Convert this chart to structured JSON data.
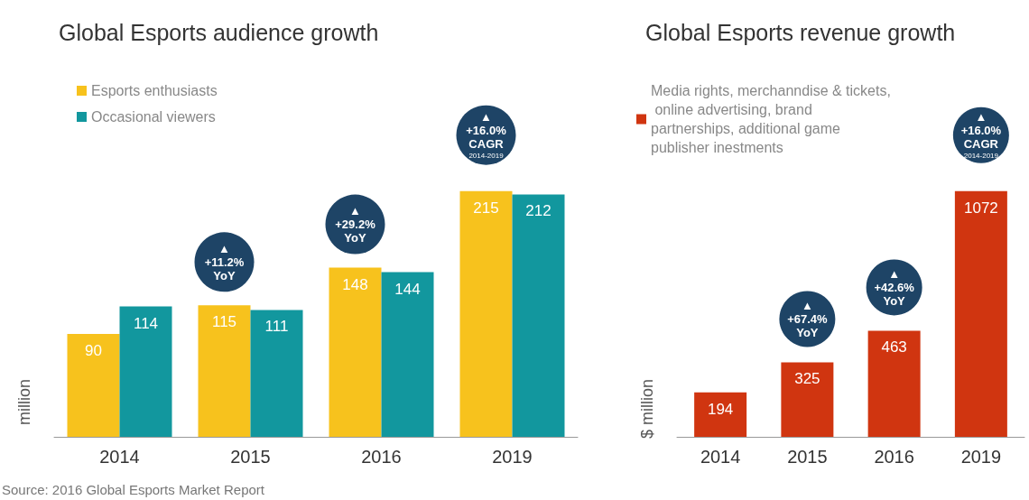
{
  "chart_data": [
    {
      "type": "bar",
      "title": "Global Esports audience growth",
      "ylabel": "million",
      "categories": [
        "2014",
        "2015",
        "2016",
        "2019"
      ],
      "series": [
        {
          "name": "Esports enthusiasts",
          "color": "#f7c21d",
          "values": [
            90,
            115,
            148,
            215
          ]
        },
        {
          "name": "Occasional viewers",
          "color": "#12979e",
          "values": [
            114,
            111,
            144,
            212
          ]
        }
      ],
      "data_labels": true,
      "legend": "top left",
      "annotations": [
        "▲ +11.2% YoY",
        "▲ +29.2% YoY",
        "▲ +16.0% CAGR 2014-2019",
        "Source: 2016 Global Esports Market Report"
      ]
    },
    {
      "type": "bar",
      "title": "Global Esports revenue growth",
      "ylabel": "$ million",
      "categories": [
        "2014",
        "2015",
        "2016",
        "2019"
      ],
      "series": [
        {
          "name": "Media rights, merchanndise & tickets, online advertising, brand partnerships, additional game publisher inestments",
          "color": "#d03510",
          "values": [
            194,
            325,
            463,
            1072
          ]
        }
      ],
      "data_labels": true,
      "legend": "top left",
      "annotations": [
        "▲ +67.4% YoY",
        "▲ +42.6% YoY",
        "▲ +16.0% CAGR 2014-2019"
      ]
    }
  ]
}
